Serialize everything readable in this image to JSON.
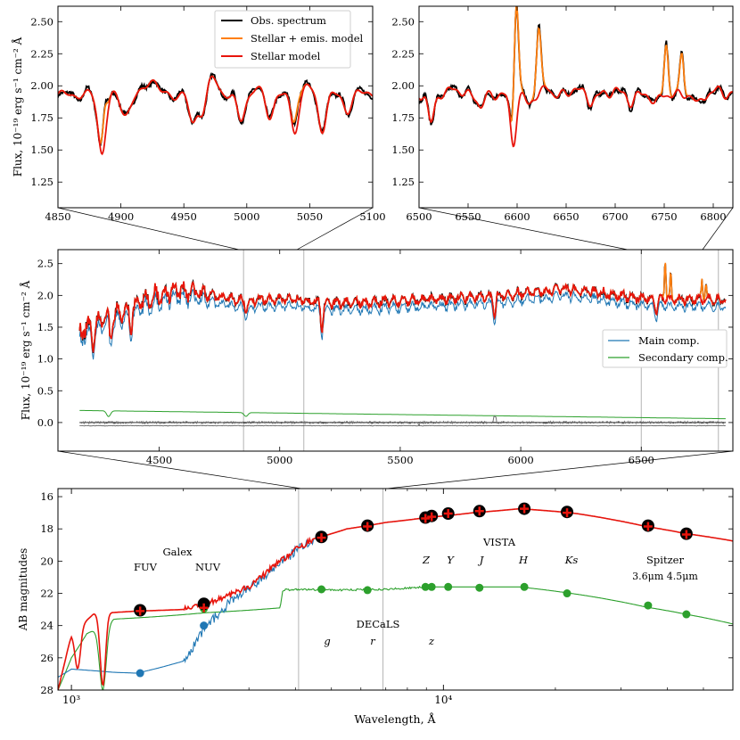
{
  "colors": {
    "obs": "#000000",
    "stellar_emis": "#ff7f0e",
    "stellar": "#e8140c",
    "main": "#1f77b4",
    "secondary": "#2ca02c",
    "resid": "#707070",
    "guide": "#b4b4b4"
  },
  "chart_data": [
    {
      "id": "panel-a",
      "type": "line",
      "title": "",
      "xlabel": "",
      "ylabel": "Flux, 10⁻¹⁹ erg s⁻¹ cm⁻² Å",
      "xlim": [
        4850,
        5100
      ],
      "ylim": [
        1.05,
        2.62
      ],
      "xticks": [
        4850,
        4900,
        4950,
        5000,
        5050,
        5100
      ],
      "yticks": [
        1.25,
        1.5,
        1.75,
        2.0,
        2.25,
        2.5
      ],
      "ytick_labels": [
        "1.25",
        "1.50",
        "1.75",
        "2.00",
        "2.25",
        "2.50"
      ],
      "legend": [
        "Obs. spectrum",
        "Stellar + emis. model",
        "Stellar model"
      ],
      "legend_loc": "upper center",
      "continuum": 1.93,
      "absorption_lines": [
        [
          4885,
          0.45,
          3
        ],
        [
          4904,
          0.14,
          4
        ],
        [
          4957,
          0.22,
          3
        ],
        [
          4965,
          0.14,
          3
        ],
        [
          4995,
          0.2,
          3
        ],
        [
          5018,
          0.16,
          3
        ],
        [
          5038,
          0.27,
          3
        ],
        [
          5060,
          0.26,
          3
        ],
        [
          5080,
          0.12,
          3
        ]
      ],
      "bumps": [
        [
          4924,
          0.13,
          4
        ],
        [
          4973,
          0.13,
          4
        ],
        [
          5008,
          0.05,
          3
        ],
        [
          5048,
          0.07,
          3
        ],
        [
          5095,
          0.03,
          3
        ]
      ],
      "emission_lines": [
        [
          4887,
          0.25,
          1.8
        ],
        [
          5040,
          0.14,
          2.4
        ]
      ]
    },
    {
      "id": "panel-b",
      "type": "line",
      "title": "",
      "xlabel": "",
      "ylabel": "",
      "xlim": [
        6500,
        6820
      ],
      "ylim": [
        1.05,
        2.62
      ],
      "xticks": [
        6500,
        6550,
        6600,
        6650,
        6700,
        6750,
        6800
      ],
      "yticks": [
        1.25,
        1.5,
        1.75,
        2.0,
        2.25,
        2.5
      ],
      "ytick_labels": [
        "1.25",
        "1.50",
        "1.75",
        "2.00",
        "2.25",
        "2.50"
      ],
      "continuum": 1.93,
      "absorption_lines": [
        [
          6512,
          0.22,
          3
        ],
        [
          6563,
          0.1,
          3
        ],
        [
          6596,
          0.38,
          3
        ],
        [
          6612,
          0.08,
          3
        ],
        [
          6675,
          0.06,
          3
        ],
        [
          6716,
          0.06,
          3
        ],
        [
          6741,
          0.07,
          3
        ],
        [
          6784,
          0.08,
          3
        ]
      ],
      "bumps": [
        [
          6536,
          0.06,
          4
        ],
        [
          6630,
          0.05,
          4
        ],
        [
          6660,
          0.06,
          4
        ],
        [
          6700,
          0.04,
          4
        ],
        [
          6805,
          0.04,
          4
        ]
      ],
      "emission_lines": [
        [
          6599,
          0.95,
          2.3
        ],
        [
          6622,
          0.52,
          2.3
        ],
        [
          6752,
          0.4,
          2.0
        ],
        [
          6768,
          0.33,
          2.0
        ]
      ]
    },
    {
      "id": "panel-c",
      "type": "line",
      "title": "",
      "xlabel": "",
      "ylabel": "Flux, 10⁻¹⁹ erg s⁻¹ cm⁻² Å",
      "xlim": [
        4080,
        6880
      ],
      "ylim": [
        -0.45,
        2.72
      ],
      "xticks": [
        4500,
        5000,
        5500,
        6000,
        6500
      ],
      "yticks": [
        0.0,
        0.5,
        1.0,
        1.5,
        2.0,
        2.5
      ],
      "ytick_labels": [
        "0.0",
        "0.5",
        "1.0",
        "1.5",
        "2.0",
        "2.5"
      ],
      "guides": [
        4850,
        5100,
        6500,
        6820
      ],
      "legend": [
        "Main comp.",
        "Secondary comp."
      ],
      "legend_loc": "center right",
      "stellar_anchors": [
        [
          4170,
          1.45
        ],
        [
          4300,
          1.65
        ],
        [
          4480,
          2.0
        ],
        [
          4560,
          2.08
        ],
        [
          4700,
          2.0
        ],
        [
          4850,
          1.92
        ],
        [
          5000,
          1.95
        ],
        [
          5200,
          1.88
        ],
        [
          5400,
          1.9
        ],
        [
          5700,
          1.95
        ],
        [
          6000,
          2.03
        ],
        [
          6200,
          2.1
        ],
        [
          6350,
          2.03
        ],
        [
          6500,
          1.96
        ],
        [
          6850,
          1.92
        ]
      ],
      "main_offset": -0.11,
      "secondary_anchors": [
        [
          4170,
          0.19
        ],
        [
          6850,
          0.06
        ]
      ],
      "secondary_dips": [
        [
          4290,
          0.09
        ],
        [
          4860,
          0.06
        ]
      ],
      "emission_lines": [
        [
          6599,
          0.68
        ],
        [
          6622,
          0.38
        ],
        [
          6752,
          0.35
        ],
        [
          6768,
          0.25
        ]
      ],
      "strong_absorptions": [
        [
          4227,
          0.35
        ],
        [
          4300,
          0.3
        ],
        [
          4383,
          0.35
        ],
        [
          4861,
          0.18
        ],
        [
          5175,
          0.4
        ],
        [
          5892,
          0.32
        ],
        [
          6563,
          0.2
        ]
      ]
    },
    {
      "id": "panel-d",
      "type": "line",
      "title": "",
      "xlabel": "Wavelength, Å",
      "ylabel": "AB magnitudes",
      "xscale": "log",
      "xlim": [
        920,
        60000
      ],
      "ylim": [
        28.0,
        15.5
      ],
      "yticks": [
        16,
        18,
        20,
        22,
        24,
        26,
        28
      ],
      "xtick_major": [
        1000,
        10000
      ],
      "xtick_major_labels": [
        "10³",
        "10⁴"
      ],
      "xtick_minor": [
        2000,
        3000,
        4000,
        5000,
        6000,
        7000,
        8000,
        9000,
        20000,
        30000,
        40000,
        50000,
        60000
      ],
      "guides": [
        4080,
        6880
      ],
      "stellar_anchors": [
        [
          920,
          28.0
        ],
        [
          1000,
          24.5
        ],
        [
          1150,
          23.25
        ],
        [
          1500,
          23.1
        ],
        [
          2000,
          23.0
        ],
        [
          2600,
          22.2
        ],
        [
          3000,
          21.6
        ],
        [
          3500,
          20.3
        ],
        [
          4000,
          19.3
        ],
        [
          4500,
          18.6
        ],
        [
          5500,
          18.0
        ],
        [
          7000,
          17.6
        ],
        [
          9000,
          17.3
        ],
        [
          12000,
          17.0
        ],
        [
          16000,
          16.75
        ],
        [
          22000,
          17.0
        ],
        [
          35000,
          17.85
        ],
        [
          45000,
          18.3
        ],
        [
          60000,
          18.75
        ]
      ],
      "main_anchors": [
        [
          920,
          27.2
        ],
        [
          1000,
          26.7
        ],
        [
          1300,
          26.9
        ],
        [
          1500,
          26.95
        ],
        [
          2000,
          26.2
        ],
        [
          2300,
          24.0
        ],
        [
          2700,
          22.4
        ],
        [
          3000,
          21.7
        ],
        [
          3500,
          20.4
        ],
        [
          4000,
          19.4
        ],
        [
          4500,
          18.6
        ],
        [
          5500,
          18.0
        ],
        [
          7000,
          17.6
        ],
        [
          9000,
          17.3
        ],
        [
          12000,
          17.0
        ],
        [
          16000,
          16.75
        ],
        [
          22000,
          17.0
        ],
        [
          35000,
          17.85
        ],
        [
          45000,
          18.3
        ],
        [
          60000,
          18.75
        ]
      ],
      "secondary_anchors": [
        [
          920,
          28.0
        ],
        [
          1000,
          26.0
        ],
        [
          1100,
          24.5
        ],
        [
          1300,
          23.6
        ],
        [
          1550,
          23.5
        ],
        [
          2300,
          23.2
        ],
        [
          3640,
          22.9
        ],
        [
          3700,
          21.8
        ],
        [
          4000,
          21.75
        ],
        [
          5000,
          21.8
        ],
        [
          7000,
          21.75
        ],
        [
          9000,
          21.6
        ],
        [
          12000,
          21.6
        ],
        [
          16000,
          21.6
        ],
        [
          22000,
          22.0
        ],
        [
          35000,
          22.85
        ],
        [
          45000,
          23.3
        ],
        [
          60000,
          23.9
        ]
      ],
      "obs_points": [
        {
          "x": 1530,
          "y": 23.05
        },
        {
          "x": 2270,
          "y": 22.65
        },
        {
          "x": 4700,
          "y": 18.5
        },
        {
          "x": 6250,
          "y": 17.8
        },
        {
          "x": 8950,
          "y": 17.3
        },
        {
          "x": 9300,
          "y": 17.2
        },
        {
          "x": 10300,
          "y": 17.05
        },
        {
          "x": 12500,
          "y": 16.9
        },
        {
          "x": 16500,
          "y": 16.75
        },
        {
          "x": 21500,
          "y": 16.95
        },
        {
          "x": 35500,
          "y": 17.8
        },
        {
          "x": 45000,
          "y": 18.3
        }
      ],
      "model_points": [
        {
          "x": 1530,
          "y": 23.1
        },
        {
          "x": 2270,
          "y": 22.9
        },
        {
          "x": 4700,
          "y": 18.55
        },
        {
          "x": 6250,
          "y": 17.85
        },
        {
          "x": 8950,
          "y": 17.35
        },
        {
          "x": 9300,
          "y": 17.25
        },
        {
          "x": 10300,
          "y": 17.05
        },
        {
          "x": 12500,
          "y": 16.9
        },
        {
          "x": 16500,
          "y": 16.75
        },
        {
          "x": 21500,
          "y": 17.0
        },
        {
          "x": 35500,
          "y": 17.85
        },
        {
          "x": 45000,
          "y": 18.35
        }
      ],
      "main_points": [
        {
          "x": 1530,
          "y": 26.95
        },
        {
          "x": 2270,
          "y": 24.0
        }
      ],
      "secondary_points": [
        {
          "x": 2270,
          "y": 22.95
        },
        {
          "x": 4700,
          "y": 21.75
        },
        {
          "x": 6250,
          "y": 21.8
        },
        {
          "x": 8950,
          "y": 21.6
        },
        {
          "x": 9300,
          "y": 21.6
        },
        {
          "x": 10300,
          "y": 21.6
        },
        {
          "x": 12500,
          "y": 21.65
        },
        {
          "x": 16500,
          "y": 21.6
        },
        {
          "x": 21500,
          "y": 22.0
        },
        {
          "x": 35500,
          "y": 22.75
        },
        {
          "x": 45000,
          "y": 23.3
        }
      ],
      "annotations": {
        "galex": "Galex",
        "fuv": "FUV",
        "nuv": "NUV",
        "vista": "VISTA",
        "vista_bands": [
          "Z",
          "Y",
          "J",
          "H",
          "Ks"
        ],
        "spitzer": "Spitzer",
        "spitzer_bands": "3.6μm  4.5μm",
        "decals": "DECaLS",
        "decals_bands": [
          "g",
          "r",
          "z"
        ]
      }
    }
  ]
}
